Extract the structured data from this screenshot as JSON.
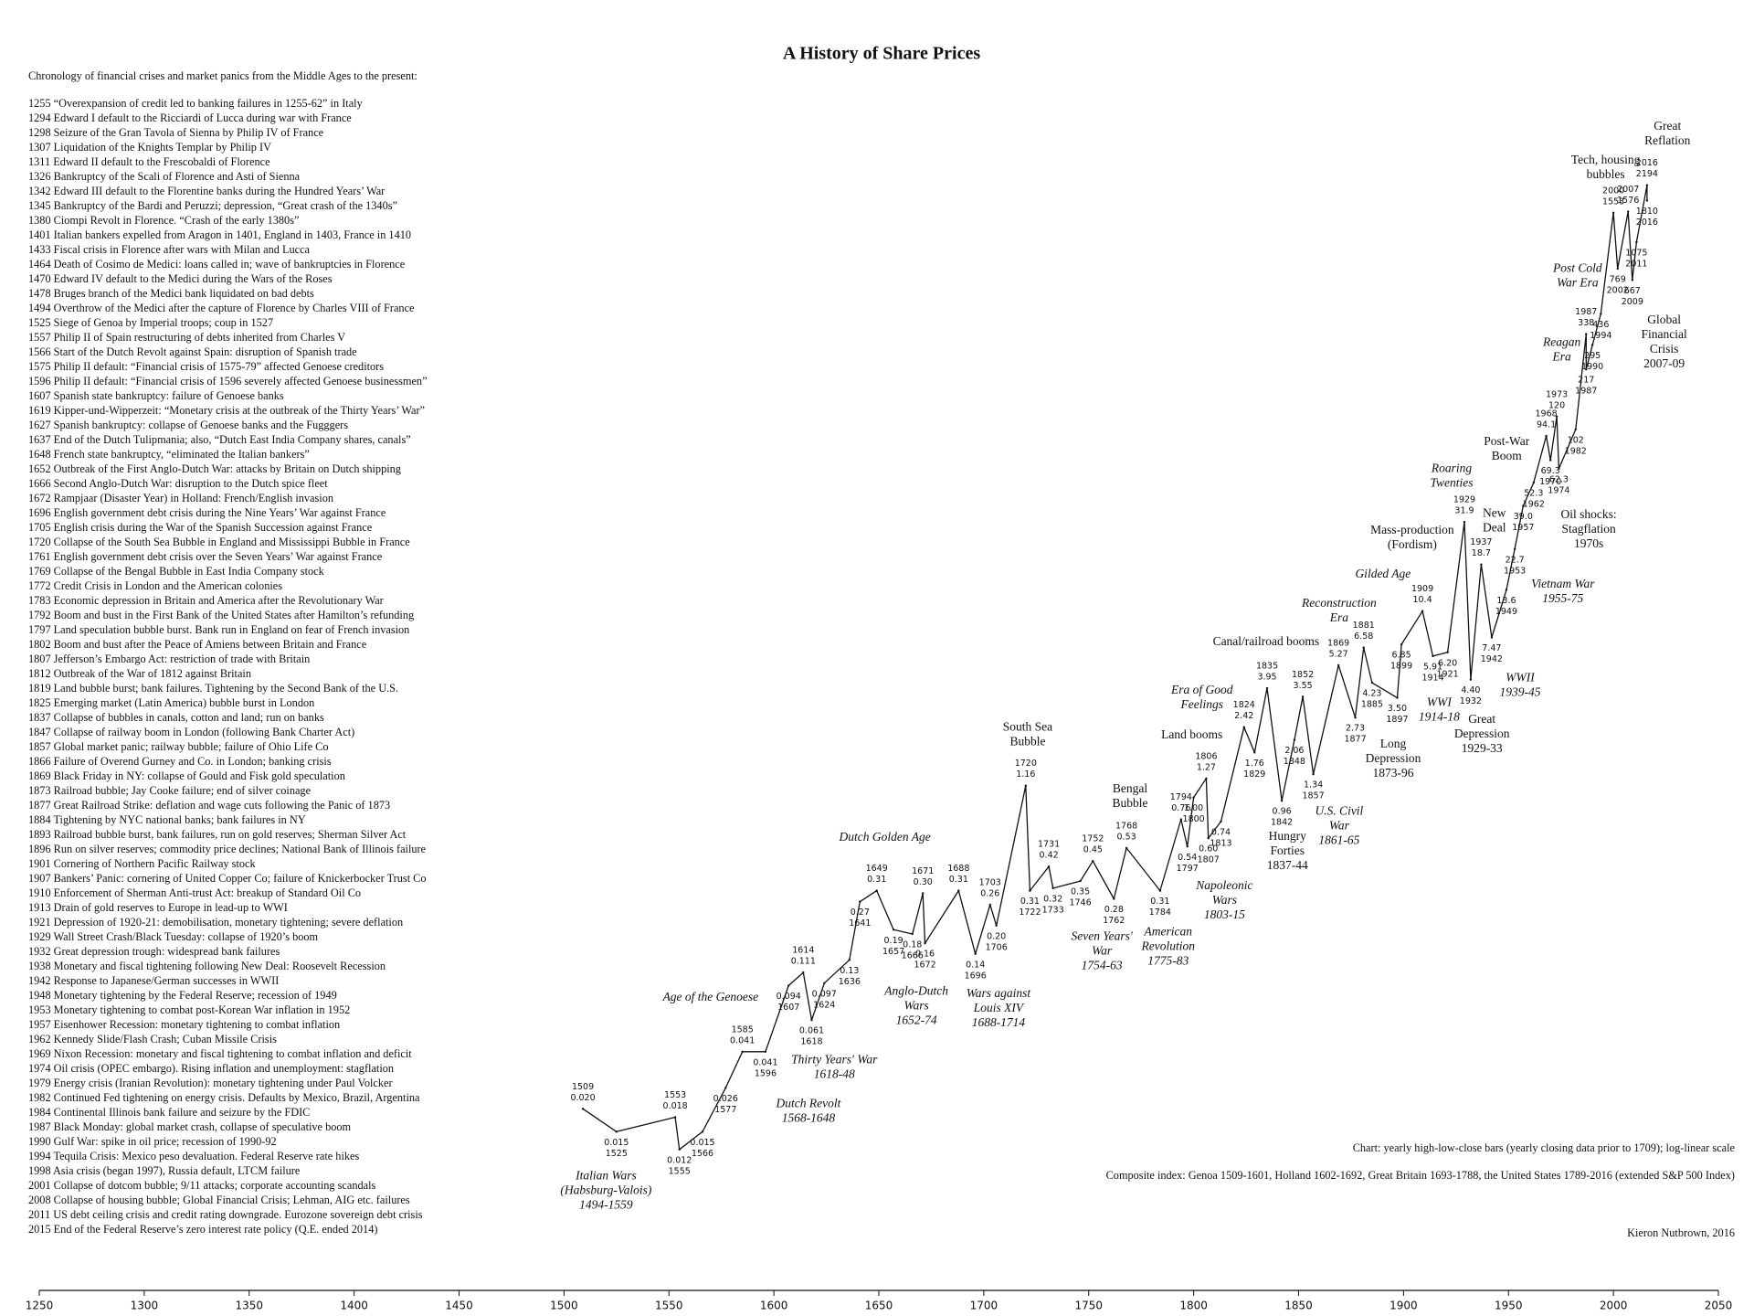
{
  "chart_data": {
    "type": "line",
    "title": "A History of Share Prices",
    "log_scale": true,
    "color": "#111111",
    "xlim": [
      1250,
      2050
    ],
    "xticks": [
      1250,
      1300,
      1350,
      1400,
      1450,
      1500,
      1550,
      1600,
      1650,
      1700,
      1750,
      1800,
      1850,
      1900,
      1950,
      2000,
      2050
    ],
    "ylim": [
      0.005,
      5000
    ],
    "x": [
      1509,
      1525,
      1553,
      1555,
      1566,
      1577,
      1585,
      1596,
      1607,
      1614,
      1618,
      1624,
      1636,
      1641,
      1649,
      1657,
      1666,
      1671,
      1672,
      1688,
      1696,
      1703,
      1706,
      1720,
      1722,
      1731,
      1733,
      1746,
      1752,
      1762,
      1768,
      1784,
      1794,
      1797,
      1800,
      1806,
      1807,
      1813,
      1824,
      1829,
      1835,
      1842,
      1848,
      1852,
      1857,
      1869,
      1877,
      1881,
      1885,
      1897,
      1899,
      1909,
      1914,
      1921,
      1929,
      1932,
      1937,
      1942,
      1949,
      1953,
      1957,
      1962,
      1968,
      1970,
      1973,
      1974,
      1982,
      1987,
      1987,
      1990,
      1994,
      2000,
      2002,
      2007,
      2009,
      2011,
      2016,
      2016
    ],
    "values": [
      0.02,
      0.015,
      0.018,
      0.012,
      0.015,
      0.026,
      0.041,
      0.041,
      0.094,
      0.111,
      0.061,
      0.097,
      0.13,
      0.27,
      0.31,
      0.19,
      0.18,
      0.3,
      0.16,
      0.31,
      0.14,
      0.26,
      0.2,
      1.16,
      0.31,
      0.42,
      0.32,
      0.35,
      0.45,
      0.28,
      0.53,
      0.31,
      0.76,
      0.54,
      1.0,
      1.27,
      0.6,
      0.74,
      2.42,
      1.76,
      3.95,
      0.96,
      2.06,
      3.55,
      1.34,
      5.27,
      2.73,
      6.58,
      4.23,
      3.5,
      6.85,
      10.4,
      5.91,
      6.2,
      31.9,
      4.4,
      18.7,
      7.47,
      13.6,
      22.7,
      39.0,
      52.3,
      94.1,
      69.3,
      120,
      62.3,
      102,
      338,
      217,
      295,
      436,
      1553,
      769,
      1576,
      667,
      1075,
      2194,
      1810
    ],
    "value_labels": [
      "0.020",
      "0.015",
      "0.018",
      "0.012",
      "0.015",
      "0.026",
      "0.041",
      "0.041",
      "0.094",
      "0.111",
      "0.061",
      "0.097",
      "0.13",
      "0.27",
      "0.31",
      "0.19",
      "0.18",
      "0.30",
      "0.16",
      "0.31",
      "0.14",
      "0.26",
      "0.20",
      "1.16",
      "0.31",
      "0.42",
      "0.32",
      "0.35",
      "0.45",
      "0.28",
      "0.53",
      "0.31",
      "0.76",
      "0.54",
      "1.00",
      "1.27",
      "0.60",
      "0.74",
      "2.42",
      "1.76",
      "3.95",
      "0.96",
      "2.06",
      "3.55",
      "1.34",
      "5.27",
      "2.73",
      "6.58",
      "4.23",
      "3.50",
      "6.85",
      "10.4",
      "5.91",
      "6.20",
      "31.9",
      "4.40",
      "18.7",
      "7.47",
      "13.6",
      "22.7",
      "39.0",
      "52.3",
      "94.1",
      "69.3",
      "120",
      "62.3",
      "102",
      "338",
      "217",
      "295",
      "436",
      "1553",
      "769",
      "1576",
      "667",
      "1075",
      "2194",
      "1810"
    ],
    "annotations": [
      {
        "lines": [
          "Great",
          "Reflation"
        ],
        "italic": false
      },
      {
        "lines": [
          "Tech, housing",
          "bubbles"
        ],
        "italic": false
      },
      {
        "lines": [
          "Global",
          "Financial",
          "Crisis",
          "2007-09"
        ],
        "italic": false
      },
      {
        "lines": [
          "Post-War",
          "Boom"
        ],
        "italic": false
      },
      {
        "lines": [
          "Oil shocks:",
          "Stagflation",
          "1970s"
        ],
        "italic": false
      },
      {
        "lines": [
          "New",
          "Deal"
        ],
        "italic": false
      },
      {
        "lines": [
          "Mass-production",
          "(Fordism)"
        ],
        "italic": false
      },
      {
        "lines": [
          "Canal/railroad booms"
        ],
        "italic": false
      },
      {
        "lines": [
          "Great",
          "Depression",
          "1929-33"
        ],
        "italic": false
      },
      {
        "lines": [
          "Long",
          "Depression",
          "1873-96"
        ],
        "italic": false
      },
      {
        "lines": [
          "Land booms"
        ],
        "italic": false
      },
      {
        "lines": [
          "Hungry",
          "Forties",
          "1837-44"
        ],
        "italic": false
      },
      {
        "lines": [
          "Bengal",
          "Bubble"
        ],
        "italic": false
      },
      {
        "lines": [
          "South Sea",
          "Bubble"
        ],
        "italic": false
      },
      {
        "lines": [
          "Post Cold",
          "War Era"
        ],
        "italic": true
      },
      {
        "lines": [
          "Reagan",
          "Era"
        ],
        "italic": true
      },
      {
        "lines": [
          "Roaring",
          "Twenties"
        ],
        "italic": true
      },
      {
        "lines": [
          "Gilded Age"
        ],
        "italic": true
      },
      {
        "lines": [
          "Vietnam War",
          "1955-75"
        ],
        "italic": true
      },
      {
        "lines": [
          "Reconstruction",
          "Era"
        ],
        "italic": true
      },
      {
        "lines": [
          "WWII",
          "1939-45"
        ],
        "italic": true
      },
      {
        "lines": [
          "WWI",
          "1914-18"
        ],
        "italic": true
      },
      {
        "lines": [
          "Era of Good",
          "Feelings"
        ],
        "italic": true
      },
      {
        "lines": [
          "U.S. Civil",
          "War",
          "1861-65"
        ],
        "italic": true
      },
      {
        "lines": [
          "Napoleonic",
          "Wars",
          "1803-15"
        ],
        "italic": true
      },
      {
        "lines": [
          "American",
          "Revolution",
          "1775-83"
        ],
        "italic": true
      },
      {
        "lines": [
          "Seven Years'",
          "War",
          "1754-63"
        ],
        "italic": true
      },
      {
        "lines": [
          "Dutch Golden Age"
        ],
        "italic": true
      },
      {
        "lines": [
          "Anglo-Dutch",
          "Wars",
          "1652-74"
        ],
        "italic": true
      },
      {
        "lines": [
          "Wars against",
          "Louis XIV",
          "1688-1714"
        ],
        "italic": true
      },
      {
        "lines": [
          "Age of the Genoese"
        ],
        "italic": true
      },
      {
        "lines": [
          "Thirty Years' War",
          "1618-48"
        ],
        "italic": true
      },
      {
        "lines": [
          "Dutch Revolt",
          "1568-1648"
        ],
        "italic": true
      },
      {
        "lines": [
          "Italian Wars",
          "(Habsburg-Valois)",
          "1494-1559"
        ],
        "italic": true
      }
    ],
    "notes": [
      "Chart: yearly high-low-close bars (yearly closing data prior to 1709); log-linear scale",
      "Composite index: Genoa 1509-1601, Holland 1602-1692, Great Britain 1693-1788, the United States 1789-2016 (extended S&P 500 Index)",
      "Kieron Nutbrown, 2016"
    ]
  },
  "chronology": {
    "heading": "Chronology of financial crises and market panics from the Middle Ages to the present:",
    "items": [
      "1255 “Overexpansion of credit led to banking failures in 1255-62” in Italy",
      "1294 Edward I default to the Ricciardi of Lucca during war with France",
      "1298 Seizure of the Gran Tavola of Sienna by Philip IV of France",
      "1307 Liquidation of the Knights Templar by Philip IV",
      "1311 Edward II default to the Frescobaldi of Florence",
      "1326 Bankruptcy of the Scali of Florence and Asti of Sienna",
      "1342 Edward III default to the Florentine banks during the Hundred Years’ War",
      "1345 Bankruptcy of the Bardi and Peruzzi; depression, “Great crash of the 1340s”",
      "1380 Ciompi Revolt in Florence. “Crash of the early 1380s”",
      "1401 Italian bankers expelled from Aragon in 1401, England in 1403, France in 1410",
      "1433 Fiscal crisis in Florence after wars with Milan and Lucca",
      "1464 Death of Cosimo de Medici: loans called in; wave of bankruptcies in Florence",
      "1470 Edward IV default to the Medici during the Wars of the Roses",
      "1478 Bruges branch of the Medici bank liquidated on bad debts",
      "1494 Overthrow of the Medici after the capture of Florence by Charles VIII of France",
      "1525 Siege of Genoa by Imperial troops; coup in 1527",
      "1557 Philip II of Spain restructuring of debts inherited from Charles V",
      "1566 Start of the Dutch Revolt against Spain: disruption of Spanish trade",
      "1575 Philip II default: “Financial crisis of 1575-79” affected Genoese creditors",
      "1596 Philip II default: “Financial crisis of 1596 severely affected Genoese businessmen”",
      "1607 Spanish state bankruptcy: failure of Genoese banks",
      "1619 Kipper-und-Wipperzeit: “Monetary crisis at the outbreak of the Thirty Years’ War”",
      "1627 Spanish bankruptcy: collapse of Genoese banks and the Fugggers",
      "1637 End of the Dutch Tulipmania; also, “Dutch East India Company shares, canals”",
      "1648 French state bankruptcy, “eliminated the Italian bankers”",
      "1652 Outbreak of the First Anglo-Dutch War: attacks by Britain on Dutch shipping",
      "1666 Second Anglo-Dutch War: disruption to the Dutch spice fleet",
      "1672 Rampjaar (Disaster Year) in Holland: French/English invasion",
      "1696 English government debt crisis during the Nine Years’ War against France",
      "1705 English crisis during the War of the Spanish Succession against France",
      "1720 Collapse of the South Sea Bubble in England and Mississippi Bubble in France",
      "1761 English government debt crisis over the Seven Years’ War against France",
      "1769 Collapse of the Bengal Bubble in East India Company stock",
      "1772 Credit Crisis in London and the American colonies",
      "1783 Economic depression in Britain and America after the Revolutionary War",
      "1792 Boom and bust in the First Bank of the United States after Hamilton’s refunding",
      "1797 Land speculation bubble burst. Bank run in England on fear of French invasion",
      "1802 Boom and bust after the Peace of Amiens between Britain and France",
      "1807 Jefferson’s Embargo Act: restriction of trade with Britain",
      "1812 Outbreak of the War of 1812 against Britain",
      "1819 Land bubble burst; bank failures. Tightening by the Second Bank of the U.S.",
      "1825 Emerging market (Latin America) bubble burst in London",
      "1837 Collapse of bubbles in canals, cotton and land; run on banks",
      "1847 Collapse of railway boom in London (following Bank Charter Act)",
      "1857 Global market panic; railway bubble; failure of Ohio Life Co",
      "1866 Failure of Overend Gurney and Co. in London; banking crisis",
      "1869 Black Friday in NY: collapse of Gould and Fisk gold speculation",
      "1873 Railroad bubble; Jay Cooke failure; end of silver coinage",
      "1877 Great Railroad Strike: deflation and wage cuts following the Panic of 1873",
      "1884 Tightening by NYC national banks; bank failures in NY",
      "1893 Railroad bubble burst, bank failures, run on gold reserves; Sherman Silver Act",
      "1896 Run on silver reserves; commodity price declines; National Bank of Illinois failure",
      "1901 Cornering of Northern Pacific Railway stock",
      "1907 Bankers’ Panic: cornering of United Copper Co; failure of Knickerbocker Trust Co",
      "1910 Enforcement of Sherman Anti-trust Act: breakup of Standard Oil Co",
      "1913 Drain of gold reserves to Europe in lead-up to WWI",
      "1921 Depression of 1920-21: demobilisation, monetary tightening; severe deflation",
      "1929 Wall Street Crash/Black Tuesday: collapse of 1920’s boom",
      "1932 Great depression trough: widespread bank failures",
      "1938 Monetary and fiscal tightening following New Deal: Roosevelt Recession",
      "1942 Response to Japanese/German successes in WWII",
      "1948 Monetary tightening by the Federal Reserve; recession of 1949",
      "1953 Monetary tightening to combat post-Korean War inflation in 1952",
      "1957 Eisenhower Recession: monetary tightening to combat inflation",
      "1962 Kennedy Slide/Flash Crash; Cuban Missile Crisis",
      "1969 Nixon Recession: monetary and fiscal tightening to combat inflation and deficit",
      "1974 Oil crisis (OPEC embargo). Rising inflation and unemployment: stagflation",
      "1979 Energy crisis (Iranian Revolution): monetary tightening under Paul Volcker",
      "1982 Continued Fed tightening on energy crisis. Defaults by Mexico, Brazil, Argentina",
      "1984 Continental Illinois bank failure and seizure by the FDIC",
      "1987 Black Monday: global market crash, collapse of speculative boom",
      "1990 Gulf War: spike in oil price; recession of 1990-92",
      "1994 Tequila Crisis: Mexico peso devaluation. Federal Reserve rate hikes",
      "1998 Asia crisis (began 1997), Russia default, LTCM failure",
      "2001 Collapse of dotcom bubble; 9/11 attacks; corporate accounting scandals",
      "2008 Collapse of housing bubble; Global Financial Crisis; Lehman, AIG etc. failures",
      "2011 US debt ceiling crisis and credit rating downgrade. Eurozone sovereign debt crisis",
      "2015 End of the Federal Reserve’s zero interest rate policy (Q.E. ended 2014)"
    ]
  }
}
